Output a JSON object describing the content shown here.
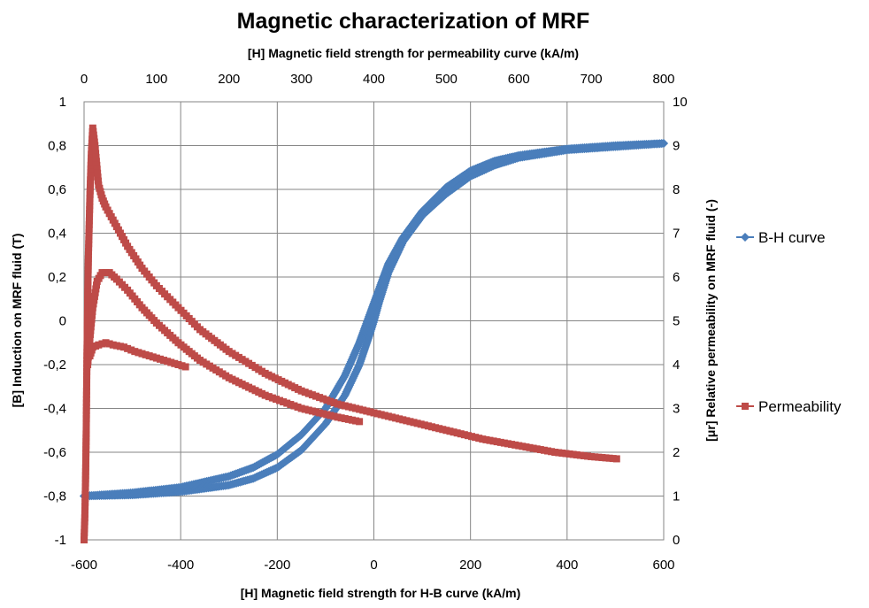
{
  "chart_data": {
    "type": "scatter",
    "title": "Magnetic characterization of MRF",
    "x_bottom_label": "[H] Magnetic field strength for H-B curve (kA/m)",
    "x_top_label": "[H] Magnetic field strength for permeability curve (kA/m)",
    "y_left_label": "[B] Induction on MRF fluid (T)",
    "y_right_label": "[μr] Relative permeability on MRF fluid (-)",
    "x_bottom_range": [
      -600,
      600
    ],
    "x_bottom_ticks": [
      "-600",
      "-400",
      "-200",
      "0",
      "200",
      "400",
      "600"
    ],
    "x_top_range": [
      0,
      800
    ],
    "x_top_ticks": [
      "0",
      "100",
      "200",
      "300",
      "400",
      "500",
      "600",
      "700",
      "800"
    ],
    "y_left_range": [
      -1,
      1
    ],
    "y_left_ticks": [
      "1",
      "0,8",
      "0,6",
      "0,4",
      "0,2",
      "0",
      "-0,2",
      "-0,4",
      "-0,6",
      "-0,8",
      "-1"
    ],
    "y_right_range": [
      0,
      10
    ],
    "y_right_ticks": [
      "10",
      "9",
      "8",
      "7",
      "6",
      "5",
      "4",
      "3",
      "2",
      "1",
      "0"
    ],
    "grid": true,
    "legend_position": "right",
    "series": [
      {
        "name": "B-H curve",
        "color": "#4A7EBB",
        "marker": "diamond",
        "axes": "bottom-left",
        "branches": [
          {
            "x": [
              -600,
              -500,
              -400,
              -300,
              -250,
              -200,
              -150,
              -100,
              -60,
              -30,
              -10,
              0,
              10,
              30,
              60,
              100,
              150,
              200,
              250,
              300,
              400,
              500,
              600
            ],
            "y": [
              -0.8,
              -0.795,
              -0.78,
              -0.75,
              -0.72,
              -0.67,
              -0.59,
              -0.47,
              -0.34,
              -0.2,
              -0.07,
              0.0,
              0.08,
              0.22,
              0.36,
              0.48,
              0.58,
              0.66,
              0.71,
              0.745,
              0.78,
              0.795,
              0.81
            ]
          },
          {
            "x": [
              600,
              500,
              400,
              300,
              250,
              200,
              150,
              100,
              60,
              30,
              10,
              0,
              -10,
              -30,
              -60,
              -100,
              -150,
              -200,
              -250,
              -300,
              -400,
              -500,
              -600
            ],
            "y": [
              0.81,
              0.8,
              0.785,
              0.755,
              0.73,
              0.685,
              0.61,
              0.5,
              0.38,
              0.26,
              0.14,
              0.08,
              0.02,
              -0.1,
              -0.25,
              -0.4,
              -0.52,
              -0.61,
              -0.67,
              -0.71,
              -0.76,
              -0.785,
              -0.8
            ]
          }
        ]
      },
      {
        "name": "Permeability",
        "color": "#BE4B48",
        "marker": "square",
        "axes": "top-right",
        "branches": [
          {
            "x": [
              0,
              1,
              2,
              3,
              4,
              5,
              6,
              8,
              10,
              12,
              15,
              20,
              25,
              30,
              40,
              50,
              60,
              80,
              100,
              130,
              160,
              200,
              250,
              300,
              350,
              400,
              450,
              500,
              550,
              600,
              650,
              700,
              735
            ],
            "y": [
              0,
              0.5,
              1.3,
              2.5,
              4.2,
              5.5,
              6.5,
              7.8,
              8.8,
              9.4,
              9.0,
              8.1,
              7.8,
              7.6,
              7.3,
              7.0,
              6.7,
              6.2,
              5.8,
              5.3,
              4.8,
              4.3,
              3.8,
              3.4,
              3.1,
              2.9,
              2.7,
              2.5,
              2.3,
              2.15,
              2.0,
              1.9,
              1.85
            ]
          },
          {
            "x": [
              5,
              8,
              12,
              18,
              25,
              35,
              45,
              60,
              80,
              100,
              130,
              160,
              200,
              250,
              300,
              350,
              380
            ],
            "y": [
              4.0,
              4.6,
              5.3,
              5.9,
              6.1,
              6.1,
              5.95,
              5.7,
              5.3,
              4.95,
              4.5,
              4.1,
              3.7,
              3.3,
              3.0,
              2.8,
              2.7
            ]
          },
          {
            "x": [
              8,
              12,
              20,
              30,
              40,
              55,
              70,
              90,
              110,
              140
            ],
            "y": [
              4.2,
              4.4,
              4.45,
              4.5,
              4.45,
              4.4,
              4.3,
              4.2,
              4.1,
              3.95
            ]
          }
        ]
      }
    ]
  }
}
